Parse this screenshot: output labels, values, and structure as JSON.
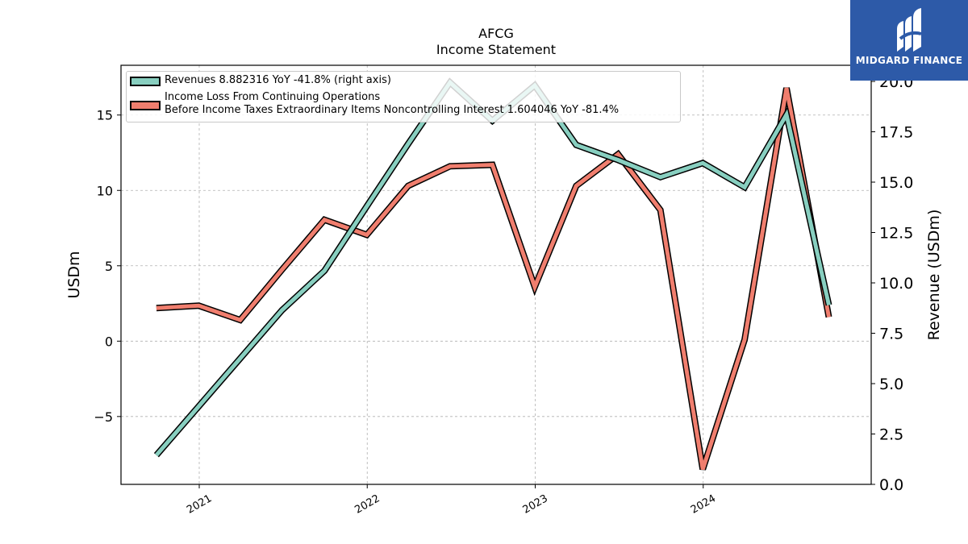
{
  "page": {
    "title": "AFCG",
    "subtitle": "Income Statement",
    "logo_text": "MIDGARD FINANCE",
    "logo_icon": "midgard-finance-logo-icon"
  },
  "legend": {
    "item1": "Revenues  8.882316 YoY -41.8% (right axis)",
    "item2_line1": "Income Loss From Continuing Operations",
    "item2_line2": "Before Income Taxes Extraordinary Items Noncontrolling Interest  1.604046 YoY -81.4%"
  },
  "colors": {
    "revenues": "#88cfc0",
    "income": "#f07e6e",
    "outline": "#000000",
    "grid": "#b0b0b0",
    "logo_bg": "#2d5aa8"
  },
  "chart_data": {
    "type": "line",
    "title": "AFCG",
    "subtitle": "Income Statement",
    "ylabel": "USDm",
    "ylabel_right": "Revenue (USDm)",
    "xlim": [
      "2020-07-15",
      "2024-12-31"
    ],
    "ylim_left": [
      -9.5,
      18.3
    ],
    "ylim_right": [
      0.0,
      20.8
    ],
    "x_ticks": [
      "2021",
      "2022",
      "2023",
      "2024"
    ],
    "y_ticks_left": [
      "−5",
      "0",
      "5",
      "10",
      "15"
    ],
    "y_ticks_right": [
      "0.0",
      "2.5",
      "5.0",
      "7.5",
      "10.0",
      "12.5",
      "15.0",
      "17.5",
      "20.0"
    ],
    "grid": true,
    "legend_position": "top-left",
    "series": [
      {
        "name": "Revenues  8.882316 YoY -41.8% (right axis)",
        "axis": "right",
        "x": [
          "2020-09-30",
          "2021-06-30",
          "2021-09-30",
          "2021-12-31",
          "2022-03-31",
          "2022-06-30",
          "2022-09-30",
          "2022-12-31",
          "2023-03-31",
          "2023-06-30",
          "2023-09-30",
          "2023-12-31",
          "2024-03-31",
          "2024-06-30",
          "2024-09-30"
        ],
        "y": [
          1.45,
          8.65,
          10.6,
          13.8,
          16.9,
          19.95,
          18.05,
          19.8,
          16.85,
          16.1,
          15.25,
          15.95,
          14.75,
          18.35,
          8.9
        ]
      },
      {
        "name": "Income Loss From Continuing Operations\nBefore Income Taxes Extraordinary Items Noncontrolling Interest  1.604046 YoY -81.4%",
        "axis": "left",
        "x": [
          "2020-09-30",
          "2020-12-31",
          "2021-03-31",
          "2021-06-30",
          "2021-09-30",
          "2021-12-31",
          "2022-03-31",
          "2022-06-30",
          "2022-09-30",
          "2022-12-31",
          "2023-03-31",
          "2023-06-30",
          "2023-09-30",
          "2023-12-31",
          "2024-03-31",
          "2024-06-30",
          "2024-09-30"
        ],
        "y": [
          2.2,
          2.35,
          1.4,
          4.75,
          8.05,
          7.05,
          10.3,
          11.6,
          11.7,
          3.6,
          10.3,
          12.4,
          8.7,
          -8.5,
          0.1,
          16.8,
          1.6
        ]
      }
    ]
  }
}
